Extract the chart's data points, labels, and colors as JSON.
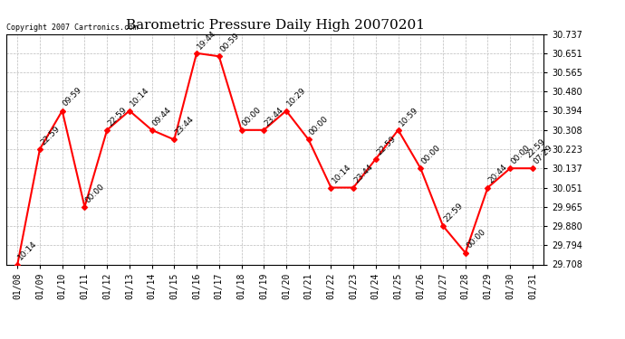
{
  "title": "Barometric Pressure Daily High 20070201",
  "copyright": "Copyright 2007 Cartronics.com",
  "dates": [
    "01/08",
    "01/09",
    "01/10",
    "01/11",
    "01/12",
    "01/13",
    "01/14",
    "01/15",
    "01/16",
    "01/17",
    "01/18",
    "01/19",
    "01/20",
    "01/21",
    "01/22",
    "01/23",
    "01/24",
    "01/25",
    "01/26",
    "01/27",
    "01/28",
    "01/29",
    "01/30",
    "01/31"
  ],
  "values": [
    29.708,
    30.223,
    30.394,
    29.965,
    30.308,
    30.394,
    30.308,
    30.265,
    30.651,
    30.637,
    30.308,
    30.308,
    30.394,
    30.265,
    30.051,
    30.051,
    30.179,
    30.308,
    30.137,
    29.88,
    29.76,
    30.051,
    30.137,
    30.137
  ],
  "labels": [
    "10:14",
    "22:59",
    "09:59",
    "00:00",
    "22:59",
    "10:14",
    "09:44",
    "23:44",
    "19:44",
    "00:59",
    "00:00",
    "23:44",
    "10:29",
    "00:00",
    "10:14",
    "23:44",
    "22:59",
    "10:59",
    "00:00",
    "22:59",
    "00:00",
    "20:44",
    "00:00",
    "22:59\n07:29"
  ],
  "ylim": [
    29.708,
    30.737
  ],
  "yticks": [
    29.708,
    29.794,
    29.88,
    29.965,
    30.051,
    30.137,
    30.223,
    30.308,
    30.394,
    30.48,
    30.565,
    30.651,
    30.737
  ],
  "line_color": "red",
  "marker_color": "red",
  "bg_color": "white",
  "grid_color": "#bbbbbb",
  "title_fontsize": 11,
  "label_fontsize": 6.5,
  "tick_fontsize": 7,
  "copyright_fontsize": 6
}
